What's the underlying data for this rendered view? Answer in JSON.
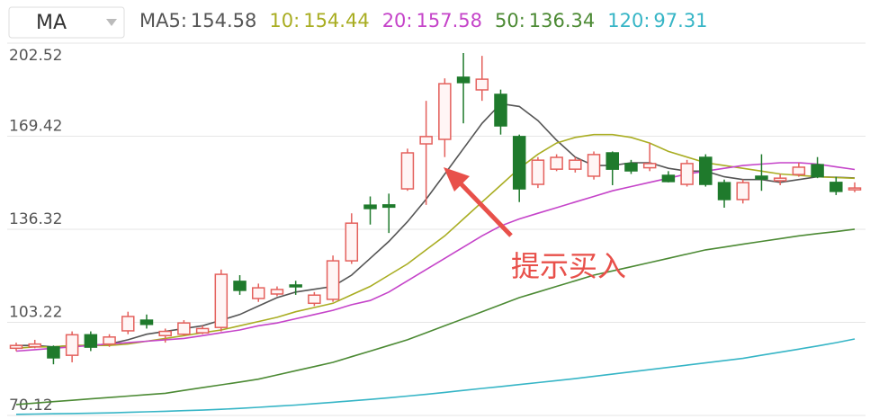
{
  "chart_data": {
    "type": "candlestick",
    "indicator": "MA",
    "up_color": "#e4605c",
    "down_color": "#1f7a2c",
    "open": [
      94,
      94.5,
      94.5,
      91.5,
      98.8,
      95.5,
      100.2,
      104,
      98.5,
      99,
      99.5,
      101.4,
      117.8,
      111.7,
      113.3,
      116.5,
      110,
      111.4,
      125.1,
      144.9,
      145,
      150.7,
      166.7,
      168.3,
      190.4,
      185.9,
      184.3,
      169.3,
      152.3,
      157.7,
      157.7,
      155.2,
      163.5,
      159.7,
      158.2,
      155.5,
      152.3,
      161.9,
      152.9,
      146.9,
      155.2,
      153.6,
      155.8,
      159.3,
      153,
      150.5
    ],
    "high": [
      96,
      97,
      95,
      100,
      100,
      99,
      107,
      106,
      101,
      104,
      102,
      122,
      120,
      117,
      116,
      118,
      114,
      127,
      142,
      148,
      149,
      165,
      182,
      190,
      199,
      198,
      186,
      170,
      162,
      163,
      162,
      164,
      164,
      161,
      167,
      157,
      161,
      163,
      154,
      154,
      163,
      156,
      160,
      162,
      155,
      153
    ],
    "low": [
      93,
      94,
      88.3,
      89,
      93,
      94.5,
      99,
      101,
      96,
      98.5,
      99,
      100,
      113,
      110.5,
      112.5,
      113,
      109,
      110.5,
      124,
      138,
      135,
      150,
      145,
      162,
      174,
      182,
      170,
      146,
      151,
      157,
      156.5,
      154,
      152,
      156,
      157,
      153,
      151.5,
      151.5,
      144,
      145.5,
      150,
      152,
      155,
      154.5,
      148.5,
      149.5
    ],
    "close": [
      95,
      95.5,
      90.6,
      98.8,
      94.4,
      98,
      105.3,
      102.5,
      100,
      103,
      101,
      120.3,
      114.6,
      115.5,
      114.9,
      116,
      112.9,
      125.1,
      138.5,
      143.7,
      144.2,
      163.5,
      169.3,
      188.1,
      188.5,
      189.7,
      173.1,
      150.7,
      160.9,
      161.9,
      160.9,
      162.9,
      157.7,
      157.1,
      159.7,
      153.3,
      159.7,
      152.3,
      146.9,
      152.9,
      154.2,
      154.5,
      158.4,
      155,
      149.8,
      151
    ],
    "ylim": [
      70.12,
      202.52
    ],
    "yticks": [
      70.12,
      103.22,
      136.32,
      169.42,
      202.52
    ],
    "grid": true,
    "series": [
      {
        "name": "MA5:",
        "color": "#555555",
        "values": [
          95,
          95,
          94.5,
          95,
          95,
          95.5,
          97,
          99,
          100,
          101,
          102,
          104,
          106,
          109,
          112,
          114,
          115,
          116,
          120,
          126,
          132,
          139,
          147,
          156,
          165,
          174,
          181,
          180,
          175,
          168,
          162,
          159,
          159,
          160,
          160,
          158,
          157,
          157,
          155,
          154,
          154,
          153,
          154,
          155,
          154.8,
          154.58
        ]
      },
      {
        "name": "10:",
        "color": "#a9ad22",
        "values": [
          94,
          94.5,
          94.5,
          95,
          95,
          95,
          95.5,
          96.5,
          97.5,
          98.5,
          99.5,
          100.5,
          102,
          103.5,
          105,
          107,
          108.5,
          110,
          113,
          116,
          120,
          124,
          129,
          134,
          140,
          146,
          152,
          158,
          163,
          167,
          169,
          170,
          170,
          169,
          167,
          164,
          162,
          160,
          159,
          158,
          157,
          156,
          155.5,
          155,
          154.7,
          154.44
        ]
      },
      {
        "name": "20:",
        "color": "#c544c9",
        "values": [
          93,
          93.5,
          94,
          94.5,
          95,
          95.5,
          96,
          96.5,
          97,
          97.5,
          98.5,
          99.5,
          100.5,
          102,
          103,
          104.5,
          106,
          107.5,
          109.5,
          111,
          114,
          118,
          122,
          126,
          130,
          134,
          137.5,
          140,
          142,
          144,
          146,
          148,
          150,
          151.5,
          153,
          154.5,
          156,
          157,
          158,
          159,
          159.5,
          160,
          160,
          159.5,
          158.5,
          157.58
        ]
      },
      {
        "name": "50:",
        "color": "#4c8a34",
        "values": [
          74,
          74.5,
          75,
          75.5,
          76,
          76.5,
          77,
          77.5,
          78,
          79,
          80,
          81,
          82,
          83,
          84.5,
          86,
          87.5,
          89,
          91,
          93,
          95,
          97,
          99.5,
          102,
          104.5,
          107,
          109.5,
          112,
          114,
          116,
          118,
          120,
          121.5,
          123,
          124.5,
          126,
          127.5,
          129,
          130,
          131,
          132,
          133,
          134,
          134.8,
          135.5,
          136.34
        ]
      },
      {
        "name": "120:",
        "color": "#36b5c6",
        "values": [
          70.5,
          70.6,
          70.7,
          70.8,
          70.9,
          71,
          71.2,
          71.4,
          71.6,
          71.8,
          72,
          72.3,
          72.6,
          73,
          73.4,
          73.8,
          74.3,
          74.8,
          75.3,
          75.8,
          76.4,
          77,
          77.6,
          78.3,
          79,
          79.7,
          80.4,
          81.1,
          81.8,
          82.5,
          83.2,
          84,
          84.8,
          85.6,
          86.4,
          87.2,
          88,
          88.8,
          89.6,
          90.4,
          91.5,
          92.6,
          93.7,
          94.8,
          96,
          97.31
        ]
      }
    ],
    "annotation": "提示买入"
  }
}
